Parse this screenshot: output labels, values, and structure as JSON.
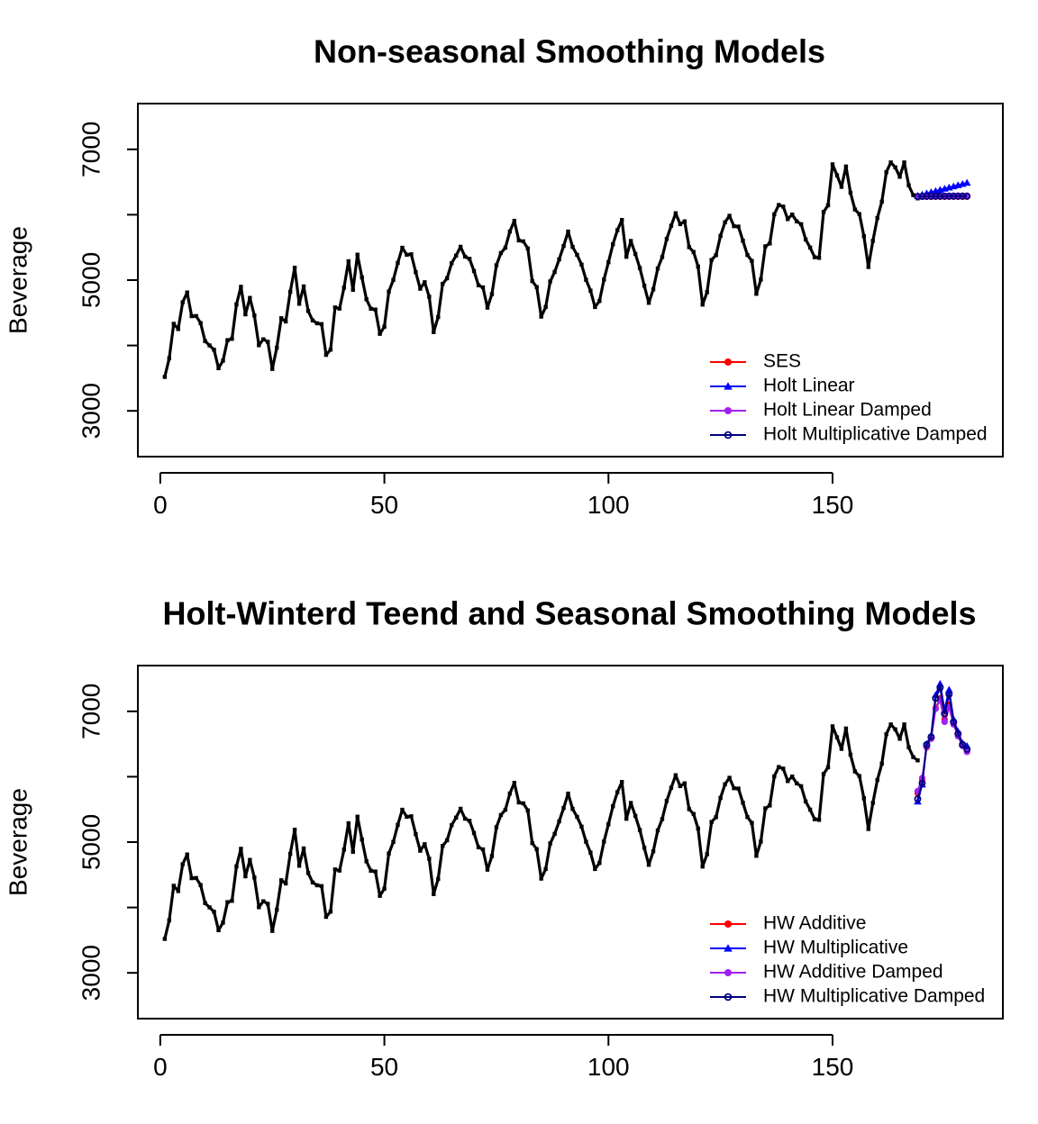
{
  "chart_data": [
    {
      "type": "line",
      "title": "Non-seasonal Smoothing Models",
      "xlabel": "",
      "ylabel": "Beverage",
      "xlim": [
        -5,
        188
      ],
      "ylim": [
        2300,
        7700
      ],
      "xticks": [
        0,
        50,
        100,
        150
      ],
      "yticks": [
        3000,
        5000,
        7000
      ],
      "legend_position": "bottom-right",
      "series": [
        {
          "name": "",
          "role": "observed",
          "color": "#000000",
          "x_start": 1,
          "values": [
            3519,
            3803,
            4332,
            4251,
            4661,
            4811,
            4448,
            4451,
            4343,
            4067,
            4001,
            3934,
            3652,
            3768,
            4082,
            4101,
            4628,
            4898,
            4476,
            4728,
            4458,
            4004,
            4095,
            4056,
            3641,
            3966,
            4417,
            4367,
            4821,
            5190,
            4638,
            4904,
            4528,
            4383,
            4339,
            4327,
            3856,
            3936,
            4582,
            4564,
            4884,
            5289,
            4851,
            5389,
            5040,
            4706,
            4562,
            4550,
            4178,
            4287,
            4825,
            5003,
            5264,
            5495,
            5387,
            5395,
            5122,
            4868,
            4968,
            4746,
            4205,
            4435,
            4942,
            5028,
            5258,
            5375,
            5510,
            5358,
            5326,
            5139,
            4920,
            4889,
            4578,
            4786,
            5227,
            5414,
            5495,
            5743,
            5907,
            5606,
            5593,
            5485,
            4985,
            4893,
            4441,
            4588,
            4979,
            5125,
            5317,
            5521,
            5742,
            5508,
            5386,
            5237,
            5005,
            4839,
            4588,
            4680,
            5008,
            5273,
            5548,
            5764,
            5920,
            5356,
            5599,
            5401,
            5185,
            4914,
            4652,
            4859,
            5178,
            5353,
            5630,
            5831,
            6023,
            5856,
            5899,
            5504,
            5430,
            5207,
            4625,
            4815,
            5308,
            5381,
            5677,
            5884,
            5984,
            5824,
            5819,
            5603,
            5384,
            5293,
            4790,
            5008,
            5517,
            5560,
            6006,
            6149,
            6124,
            5933,
            6003,
            5898,
            5855,
            5622,
            5497,
            5350,
            5340,
            6042,
            6144,
            6771,
            6603,
            6426,
            6738,
            6337,
            6080,
            6009,
            5671,
            5200,
            5600,
            5950,
            6200,
            6650,
            6800,
            6725,
            6580,
            6800,
            6450,
            6300,
            6250
          ]
        },
        {
          "name": "SES",
          "color": "#ff0000",
          "marker": "circle-filled",
          "x_start": 169,
          "values": [
            6275,
            6275,
            6275,
            6275,
            6275,
            6275,
            6275,
            6275,
            6275,
            6275,
            6275,
            6275
          ]
        },
        {
          "name": "Holt Linear",
          "color": "#0000ff",
          "marker": "triangle-filled",
          "x_start": 169,
          "values": [
            6290,
            6308,
            6326,
            6344,
            6362,
            6380,
            6398,
            6416,
            6434,
            6452,
            6470,
            6488
          ]
        },
        {
          "name": "Holt Linear Damped",
          "color": "#a020f0",
          "marker": "circle-filled",
          "x_start": 169,
          "values": [
            6280,
            6283,
            6285,
            6287,
            6288,
            6289,
            6290,
            6290,
            6291,
            6291,
            6291,
            6291
          ]
        },
        {
          "name": "Holt Multiplicative Damped",
          "color": "#000080",
          "marker": "circle-open",
          "x_start": 169,
          "values": [
            6278,
            6280,
            6281,
            6282,
            6283,
            6283,
            6284,
            6284,
            6284,
            6284,
            6284,
            6284
          ]
        }
      ]
    },
    {
      "type": "line",
      "title": "Holt-Winterd Teend and Seasonal Smoothing Models",
      "xlabel": "",
      "ylabel": "Beverage",
      "xlim": [
        -5,
        188
      ],
      "ylim": [
        2300,
        7700
      ],
      "xticks": [
        0,
        50,
        100,
        150
      ],
      "yticks": [
        3000,
        5000,
        7000
      ],
      "legend_position": "bottom-right",
      "series": [
        {
          "name": "",
          "role": "observed",
          "color": "#000000",
          "x_start": 1,
          "same_as_first_chart_observed": true
        },
        {
          "name": "HW Additive",
          "color": "#ff0000",
          "marker": "circle-filled",
          "x_start": 169,
          "values": [
            5750,
            5950,
            6450,
            6600,
            7050,
            7200,
            6880,
            7100,
            6820,
            6650,
            6500,
            6420
          ]
        },
        {
          "name": "HW Multiplicative",
          "color": "#0000ff",
          "marker": "triangle-filled",
          "x_start": 169,
          "values": [
            5620,
            5880,
            6500,
            6630,
            7250,
            7420,
            7020,
            7330,
            6880,
            6690,
            6510,
            6470
          ]
        },
        {
          "name": "HW Additive Damped",
          "color": "#a020f0",
          "marker": "circle-filled",
          "x_start": 169,
          "values": [
            5780,
            5980,
            6460,
            6580,
            7040,
            7170,
            6840,
            7060,
            6800,
            6620,
            6470,
            6380
          ]
        },
        {
          "name": "HW Multiplicative Damped",
          "color": "#000080",
          "marker": "circle-open",
          "x_start": 169,
          "values": [
            5660,
            5900,
            6490,
            6610,
            7200,
            7360,
            6960,
            7260,
            6840,
            6660,
            6490,
            6420
          ]
        }
      ]
    }
  ]
}
